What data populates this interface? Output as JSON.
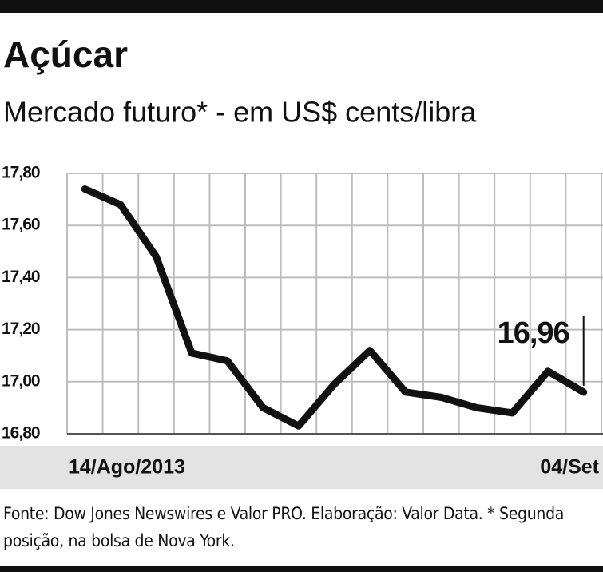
{
  "chart_data": {
    "type": "line",
    "title": "Açúcar",
    "subtitle": "Mercado futuro* - em US$ cents/libra",
    "source": "Fonte: Dow Jones Newswires e Valor PRO. Elaboração: Valor Data. * Segunda posição, na bolsa de Nova York.",
    "categories": [
      "14/Ago/2013",
      null,
      null,
      null,
      null,
      null,
      null,
      null,
      null,
      null,
      null,
      null,
      null,
      null,
      "04/Set"
    ],
    "values": [
      17.74,
      17.68,
      17.48,
      17.11,
      17.08,
      16.9,
      16.83,
      16.99,
      17.12,
      16.96,
      16.94,
      16.9,
      16.88,
      17.04,
      16.96
    ],
    "value_labels": [
      null,
      null,
      null,
      null,
      null,
      null,
      null,
      null,
      null,
      null,
      null,
      null,
      null,
      null,
      "16,96"
    ],
    "color": "#111111",
    "ylim": [
      16.8,
      17.8
    ],
    "yticks": [
      {
        "value": 16.8,
        "label": "16,80"
      },
      {
        "value": 17.0,
        "label": "17,00"
      },
      {
        "value": 17.2,
        "label": "17,20"
      },
      {
        "value": 17.4,
        "label": "17,40"
      },
      {
        "value": 17.6,
        "label": "17,60"
      },
      {
        "value": 17.8,
        "label": "17,80"
      }
    ],
    "grid": true
  }
}
